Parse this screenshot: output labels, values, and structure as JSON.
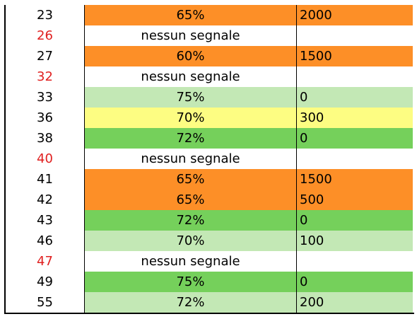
{
  "colors": {
    "orange": "#fd8f27",
    "light_green": "#c3e8b5",
    "green": "#75d05b",
    "yellow": "#fdfd82",
    "white": "#ffffff",
    "id_no_signal_text": "#e02020"
  },
  "rows": [
    {
      "id": "23",
      "pct": "65%",
      "val": "2000",
      "color": "orange",
      "no_signal": false
    },
    {
      "id": "26",
      "pct": "nessun segnale",
      "val": "",
      "color": "white",
      "no_signal": true
    },
    {
      "id": "27",
      "pct": "60%",
      "val": "1500",
      "color": "orange",
      "no_signal": false
    },
    {
      "id": "32",
      "pct": "nessun segnale",
      "val": "",
      "color": "white",
      "no_signal": true
    },
    {
      "id": "33",
      "pct": "75%",
      "val": "0",
      "color": "light_green",
      "no_signal": false
    },
    {
      "id": "36",
      "pct": "70%",
      "val": "300",
      "color": "yellow",
      "no_signal": false
    },
    {
      "id": "38",
      "pct": "72%",
      "val": "0",
      "color": "green",
      "no_signal": false
    },
    {
      "id": "40",
      "pct": "nessun segnale",
      "val": "",
      "color": "white",
      "no_signal": true
    },
    {
      "id": "41",
      "pct": "65%",
      "val": "1500",
      "color": "orange",
      "no_signal": false
    },
    {
      "id": "42",
      "pct": "65%",
      "val": "500",
      "color": "orange",
      "no_signal": false
    },
    {
      "id": "43",
      "pct": "72%",
      "val": "0",
      "color": "green",
      "no_signal": false
    },
    {
      "id": "46",
      "pct": "70%",
      "val": "100",
      "color": "light_green",
      "no_signal": false
    },
    {
      "id": "47",
      "pct": "nessun segnale",
      "val": "",
      "color": "white",
      "no_signal": true
    },
    {
      "id": "49",
      "pct": "75%",
      "val": "0",
      "color": "green",
      "no_signal": false
    },
    {
      "id": "55",
      "pct": "72%",
      "val": "200",
      "color": "light_green",
      "no_signal": false
    }
  ]
}
